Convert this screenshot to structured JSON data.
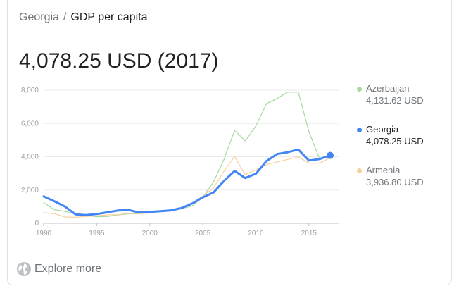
{
  "breadcrumb": {
    "country": "Georgia",
    "separator": "/",
    "metric": "GDP per capita"
  },
  "headline": "4,078.25 USD (2017)",
  "legend": [
    {
      "name": "Azerbaijan",
      "value": "4,131.62 USD",
      "color": "#a8d8a0",
      "active": false
    },
    {
      "name": "Georgia",
      "value": "4,078.25 USD",
      "color": "#4285f4",
      "active": true
    },
    {
      "name": "Armenia",
      "value": "3,936.80 USD",
      "color": "#f9cf98",
      "active": false
    }
  ],
  "footer": {
    "explore_label": "Explore more",
    "icon": "globe-icon"
  },
  "chart_data": {
    "type": "line",
    "xlim": [
      1990,
      2017
    ],
    "ylim": [
      0,
      8000
    ],
    "x_ticks": [
      "1990",
      "1995",
      "2000",
      "2005",
      "2010",
      "2015"
    ],
    "y_ticks": [
      "0",
      "2,000",
      "4,000",
      "6,000",
      "8,000"
    ],
    "grid": true,
    "legend_position": "right",
    "series": [
      {
        "name": "Azerbaijan",
        "color": "#a8d8a0",
        "x": [
          1990,
          1991,
          1992,
          1993,
          1994,
          1995,
          1996,
          1997,
          1998,
          1999,
          2000,
          2001,
          2002,
          2003,
          2004,
          2005,
          2006,
          2007,
          2008,
          2009,
          2010,
          2011,
          2012,
          2013,
          2014,
          2015,
          2016,
          2017
        ],
        "y": [
          1240,
          820,
          720,
          560,
          460,
          400,
          410,
          510,
          570,
          580,
          660,
          700,
          760,
          880,
          1040,
          1580,
          2470,
          3850,
          5580,
          4950,
          5840,
          7190,
          7500,
          7880,
          7890,
          5500,
          3880,
          4131.62
        ]
      },
      {
        "name": "Armenia",
        "color": "#f9cf98",
        "x": [
          1990,
          1991,
          1992,
          1993,
          1994,
          1995,
          1996,
          1997,
          1998,
          1999,
          2000,
          2001,
          2002,
          2003,
          2004,
          2005,
          2006,
          2007,
          2008,
          2009,
          2010,
          2011,
          2012,
          2013,
          2014,
          2015,
          2016,
          2017
        ],
        "y": [
          640,
          590,
          380,
          370,
          410,
          450,
          510,
          520,
          610,
          590,
          620,
          700,
          740,
          880,
          1180,
          1640,
          2130,
          3140,
          4010,
          2920,
          3220,
          3530,
          3680,
          3840,
          3990,
          3610,
          3610,
          3936.8
        ]
      },
      {
        "name": "Georgia",
        "color": "#4285f4",
        "x": [
          1990,
          1991,
          1992,
          1993,
          1994,
          1995,
          1996,
          1997,
          1998,
          1999,
          2000,
          2001,
          2002,
          2003,
          2004,
          2005,
          2006,
          2007,
          2008,
          2009,
          2010,
          2011,
          2012,
          2013,
          2014,
          2015,
          2016,
          2017
        ],
        "y": [
          1620,
          1330,
          1010,
          540,
          500,
          560,
          660,
          770,
          800,
          650,
          690,
          730,
          780,
          920,
          1190,
          1560,
          1850,
          2550,
          3150,
          2720,
          2980,
          3740,
          4160,
          4270,
          4430,
          3770,
          3860,
          4078.25
        ]
      }
    ]
  }
}
